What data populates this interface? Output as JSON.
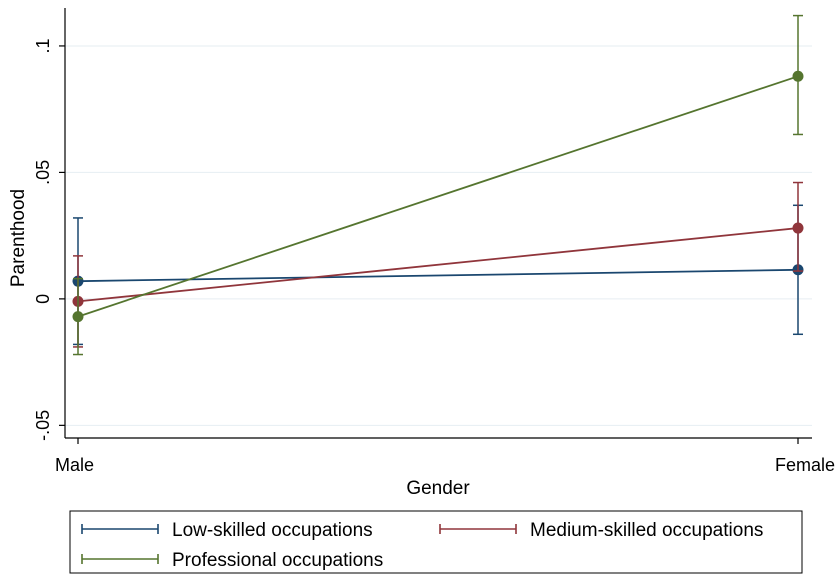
{
  "chart_data": {
    "type": "line",
    "xlabel": "Gender",
    "ylabel": "Parenthood",
    "categories": [
      "Male",
      "Female"
    ],
    "ylim": [
      -0.055,
      0.115
    ],
    "yticks": [
      -0.05,
      0,
      0.05,
      0.1
    ],
    "ytick_labels": [
      "-.05",
      "0",
      ".05",
      ".1"
    ],
    "grid": true,
    "legend_position": "bottom",
    "series": [
      {
        "name": "Low-skilled occupations",
        "color": "#1a476f",
        "values": [
          0.007,
          0.0115
        ],
        "ci_low": [
          -0.018,
          -0.014
        ],
        "ci_high": [
          0.032,
          0.037
        ]
      },
      {
        "name": "Medium-skilled occupations",
        "color": "#90353b",
        "values": [
          -0.001,
          0.028
        ],
        "ci_low": [
          -0.019,
          0.011
        ],
        "ci_high": [
          0.017,
          0.046
        ]
      },
      {
        "name": "Professional occupations",
        "color": "#55752f",
        "values": [
          -0.007,
          0.088
        ],
        "ci_low": [
          -0.022,
          0.065
        ],
        "ci_high": [
          0.008,
          0.112
        ]
      }
    ]
  }
}
